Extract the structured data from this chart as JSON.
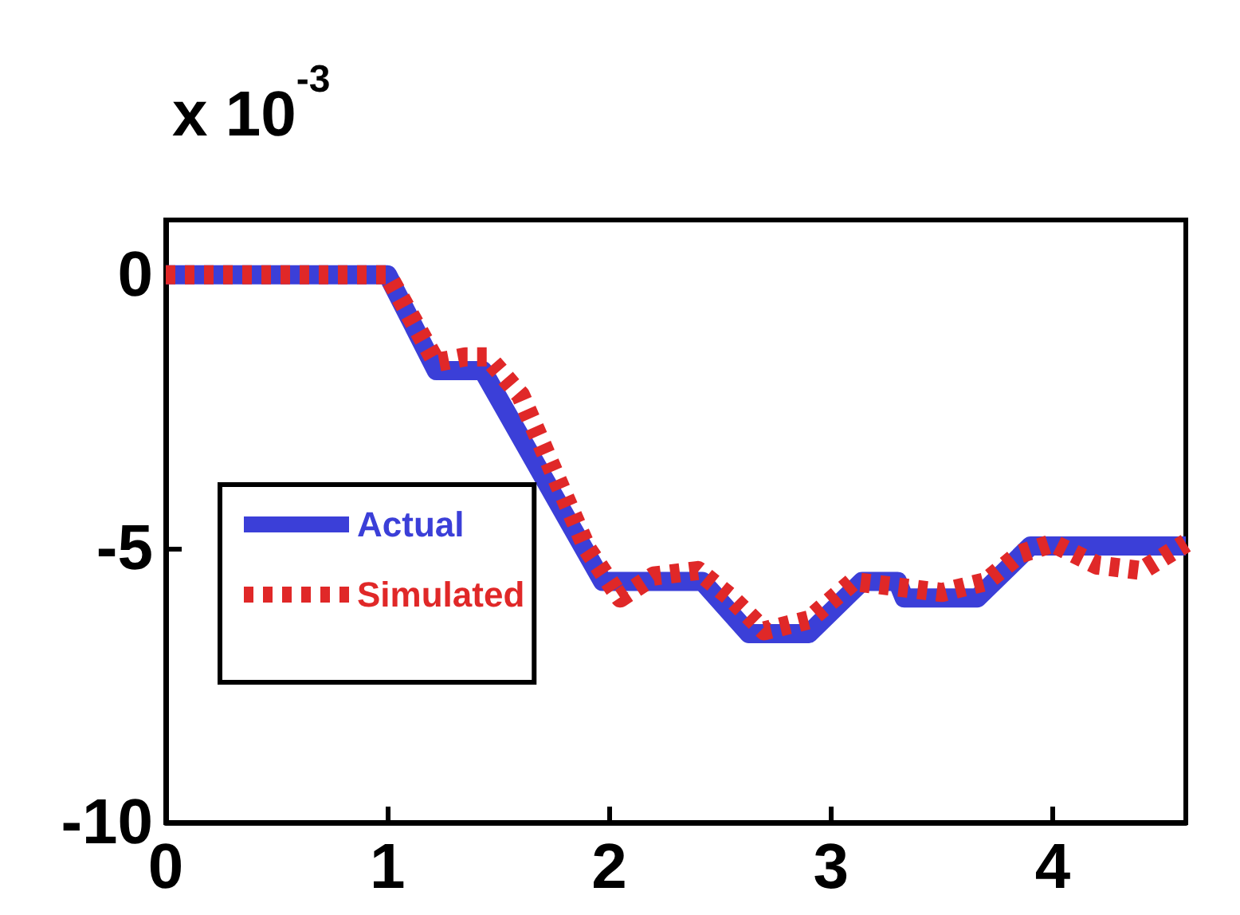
{
  "chart_data": {
    "type": "line",
    "annotations": [
      "x 10$^{-3}$"
    ],
    "xlim": [
      0,
      4.6
    ],
    "xticks": [
      0,
      1,
      2,
      3,
      4
    ],
    "ylim": [
      -10,
      1
    ],
    "yticks": [
      -10,
      -5,
      0
    ],
    "grid": false,
    "legend": "left",
    "marker": "none",
    "series": [
      {
        "name": "Actual",
        "color": "#3b3fd8",
        "line_style": "solid",
        "x": [
          0,
          1,
          1.22,
          1.43,
          1.97,
          2.42,
          2.63,
          2.9,
          3.14,
          3.3,
          3.33,
          3.66,
          3.9,
          4.6
        ],
        "values": [
          0,
          0,
          -1.75,
          -1.75,
          -5.6,
          -5.6,
          -6.55,
          -6.55,
          -5.6,
          -5.6,
          -5.9,
          -5.9,
          -4.95,
          -4.95
        ]
      },
      {
        "name": "Simulated",
        "color": "#e02828",
        "line_style": "dashed",
        "x": [
          0,
          1,
          1.22,
          1.35,
          1.45,
          1.6,
          1.75,
          1.9,
          2.05,
          2.2,
          2.4,
          2.55,
          2.7,
          2.9,
          3.1,
          3.3,
          3.5,
          3.7,
          3.85,
          4.0,
          4.2,
          4.4,
          4.6
        ],
        "values": [
          0,
          0,
          -1.6,
          -1.5,
          -1.5,
          -2.2,
          -3.6,
          -5.0,
          -5.9,
          -5.5,
          -5.4,
          -5.9,
          -6.5,
          -6.3,
          -5.6,
          -5.7,
          -5.8,
          -5.6,
          -5.1,
          -4.9,
          -5.3,
          -5.4,
          -4.9
        ]
      }
    ]
  }
}
